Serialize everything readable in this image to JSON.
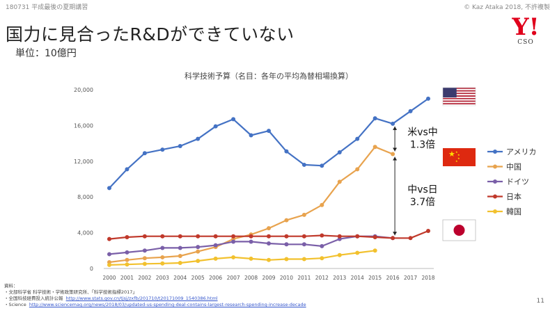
{
  "header": {
    "left": "180731 平成最後の夏期講習",
    "right": "© Kaz Ataka 2018, 不許複製"
  },
  "title": "国力に見合ったR&Dができていない",
  "unit": "単位：10億円",
  "logo": {
    "mark": "Y!",
    "sub": "CSO"
  },
  "chart_data": {
    "type": "line",
    "title": "科学技術予算（名目：各年の平均為替相場換算）",
    "xlabel": "",
    "ylabel": "",
    "ylim": [
      0,
      20000
    ],
    "yticks": [
      "0",
      "4,000",
      "8,000",
      "12,000",
      "16,000",
      "20,000"
    ],
    "grid": false,
    "legend_position": "right",
    "x": [
      2000,
      2001,
      2002,
      2003,
      2004,
      2005,
      2006,
      2007,
      2008,
      2009,
      2010,
      2011,
      2012,
      2013,
      2014,
      2015,
      2016,
      2017,
      2018
    ],
    "series": [
      {
        "name": "アメリカ",
        "color": "#4472c4",
        "values": [
          9000,
          11100,
          12900,
          13300,
          13700,
          14500,
          15900,
          16700,
          14900,
          15400,
          13100,
          11600,
          11500,
          13000,
          14500,
          16800,
          16200,
          17600,
          19000
        ]
      },
      {
        "name": "中国",
        "color": "#e8a34e",
        "values": [
          700,
          950,
          1150,
          1250,
          1400,
          1900,
          2400,
          3300,
          3800,
          4500,
          5400,
          6000,
          7100,
          9700,
          11100,
          13600,
          12800,
          null,
          null
        ]
      },
      {
        "name": "ドイツ",
        "color": "#7a5fa8",
        "values": [
          1600,
          1800,
          2000,
          2300,
          2300,
          2400,
          2600,
          3000,
          3000,
          2800,
          2700,
          2700,
          2500,
          3300,
          3600,
          3600,
          3400,
          null,
          null
        ]
      },
      {
        "name": "日本",
        "color": "#c0392b",
        "values": [
          3300,
          3500,
          3600,
          3600,
          3600,
          3600,
          3600,
          3600,
          3600,
          3600,
          3600,
          3600,
          3700,
          3600,
          3600,
          3500,
          3400,
          3400,
          4200
        ]
      },
      {
        "name": "韓国",
        "color": "#f2c12e",
        "values": [
          400,
          450,
          520,
          560,
          620,
          850,
          1100,
          1250,
          1100,
          950,
          1050,
          1050,
          1150,
          1500,
          1750,
          2000,
          null,
          null,
          null
        ]
      }
    ],
    "annotations": [
      {
        "line1": "米vs中",
        "line2": "1.3倍"
      },
      {
        "line1": "中vs日",
        "line2": "3.7倍"
      }
    ],
    "flags": [
      "us-flag-icon",
      "china-flag-icon",
      "japan-flag-icon"
    ]
  },
  "sources": {
    "heading": "資料：",
    "items": [
      {
        "text": "・文部科学省 科学技術・学術政策研究所、「科学技術指標2017」",
        "link": ""
      },
      {
        "text": "・全国科技経費投入統計公報",
        "link": "http://www.stats.gov.cn/tjsj/zxfb/201710/t20171009_1540386.html"
      },
      {
        "text": "・Science",
        "link": "http://www.sciencemag.org/news/2018/03/updated-us-spending-deal-contains-largest-research-spending-increase-decade"
      }
    ]
  },
  "page_number": "11"
}
